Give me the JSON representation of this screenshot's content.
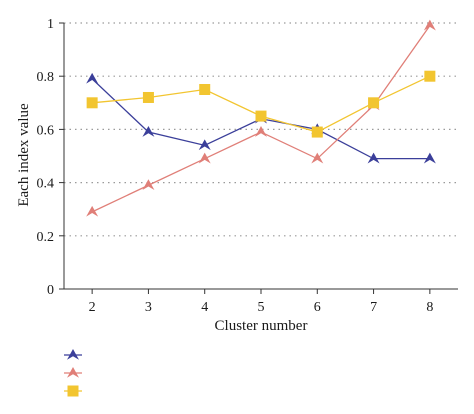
{
  "chart_data": {
    "type": "line",
    "title": "",
    "xlabel": "Cluster number",
    "ylabel": "Each index value",
    "x": [
      2,
      3,
      4,
      5,
      6,
      7,
      8
    ],
    "xlim": [
      1.5,
      8.5
    ],
    "ylim": [
      0,
      1
    ],
    "yticks": [
      "0",
      "0.2",
      "0.4",
      "0.6",
      "0.8",
      "1"
    ],
    "grid": "horizontal-dotted",
    "legend_position": "bottom-left",
    "series": [
      {
        "name": "",
        "marker": "triangle",
        "color": "#3b3f9a",
        "values": [
          0.79,
          0.59,
          0.54,
          0.64,
          0.6,
          0.49,
          0.49
        ]
      },
      {
        "name": "",
        "marker": "triangle",
        "color": "#e07f78",
        "values": [
          0.29,
          0.39,
          0.49,
          0.59,
          0.49,
          0.69,
          0.99
        ]
      },
      {
        "name": "",
        "marker": "square",
        "color": "#f2c530",
        "values": [
          0.7,
          0.72,
          0.75,
          0.65,
          0.59,
          0.7,
          0.8
        ]
      }
    ]
  }
}
